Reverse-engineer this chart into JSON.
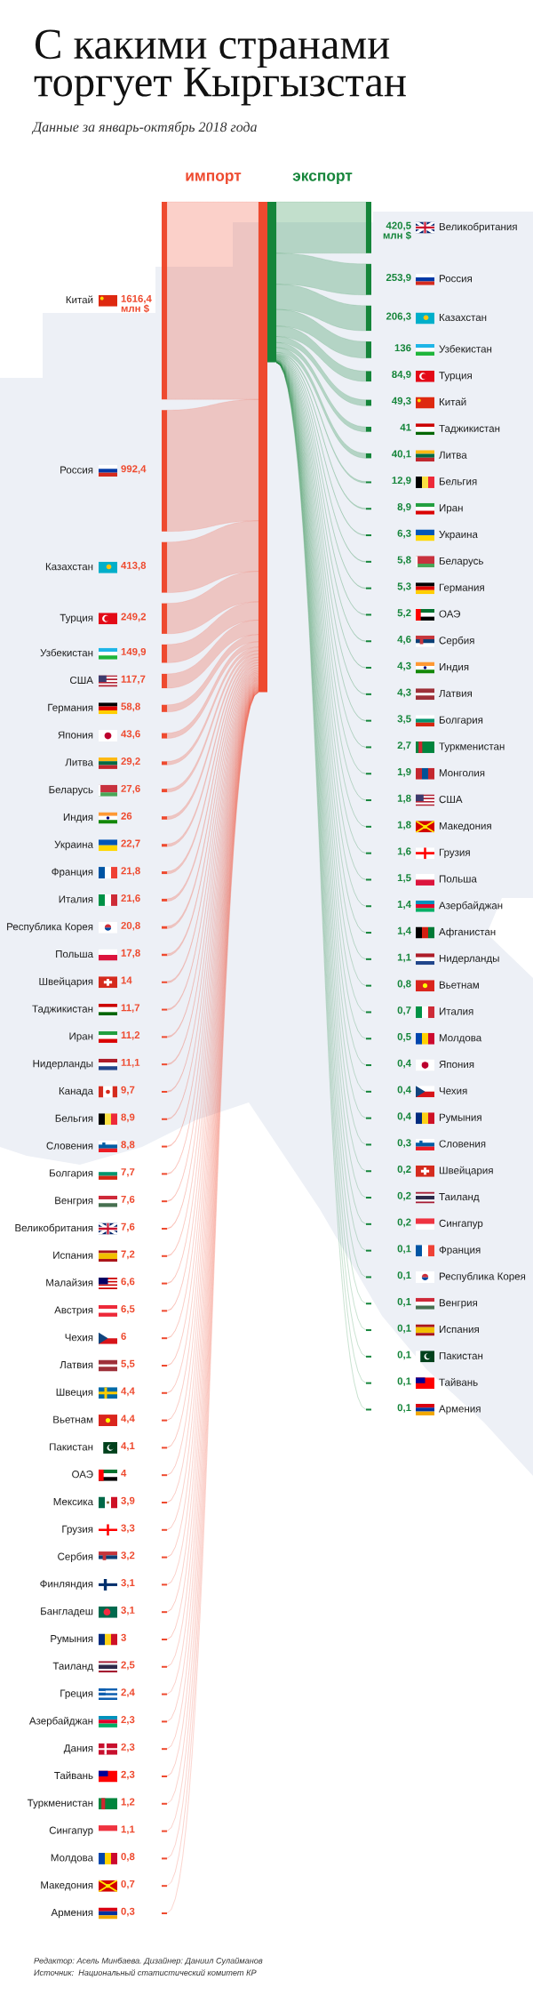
{
  "chart_data": [
    {
      "type": "other",
      "title": "С какими странами торгует Кыргызстан",
      "subtitle": "Данные за январь-октябрь 2018 года",
      "categories": [
        "Китай",
        "Россия",
        "Казахстан",
        "Турция",
        "Узбекистан",
        "США",
        "Германия",
        "Япония",
        "Литва",
        "Беларусь",
        "Индия",
        "Украина",
        "Франция",
        "Италия",
        "Республика Корея",
        "Польша",
        "Швейцария",
        "Таджикистан",
        "Иран",
        "Нидерланды",
        "Канада",
        "Бельгия",
        "Словения",
        "Болгария",
        "Венгрия",
        "Великобритания",
        "Испания",
        "Малайзия",
        "Австрия",
        "Чехия",
        "Латвия",
        "Швеция",
        "Вьетнам",
        "Пакистан",
        "ОАЭ",
        "Мексика",
        "Грузия",
        "Сербия",
        "Финляндия",
        "Бангладеш",
        "Румыния",
        "Таиланд",
        "Греция",
        "Азербайджан",
        "Дания",
        "Тайвань",
        "Туркменистан",
        "Сингапур",
        "Молдова",
        "Македония",
        "Армения"
      ],
      "series": [
        {
          "name": "импорт",
          "color": "#ee4a2f",
          "values": [
            1616.4,
            992.4,
            413.8,
            249.2,
            149.9,
            117.7,
            58.8,
            43.6,
            29.2,
            27.6,
            26,
            22.7,
            21.8,
            21.6,
            20.8,
            17.8,
            14,
            11.7,
            11.2,
            11.1,
            9.7,
            8.9,
            8.8,
            7.7,
            7.6,
            7.6,
            7.2,
            6.6,
            6.5,
            6,
            5.5,
            4.4,
            4.4,
            4.1,
            4,
            3.9,
            3.3,
            3.2,
            3.1,
            3.1,
            3,
            2.5,
            2.4,
            2.3,
            2.3,
            2.3,
            1.2,
            1.1,
            0.8,
            0.7,
            0.3
          ],
          "value_labels": [
            "1616,4 млн $",
            "992,4",
            "413,8",
            "249,2",
            "149,9",
            "117,7",
            "58,8",
            "43,6",
            "29,2",
            "27,6",
            "26",
            "22,7",
            "21,8",
            "21,6",
            "20,8",
            "17,8",
            "14",
            "11,7",
            "11,2",
            "11,1",
            "9,7",
            "8,9",
            "8,8",
            "7,7",
            "7,6",
            "7,6",
            "7,2",
            "6,6",
            "6,5",
            "6",
            "5,5",
            "4,4",
            "4,4",
            "4,1",
            "4",
            "3,9",
            "3,3",
            "3,2",
            "3,1",
            "3,1",
            "3",
            "2,5",
            "2,4",
            "2,3",
            "2,3",
            "2,3",
            "1,2",
            "1,1",
            "0,8",
            "0,7",
            "0,3"
          ]
        }
      ],
      "annotations": [
        "Редактор: Асель Минбаева. Дизайнер: Даниил Сулайманов",
        "Источник:  Национальный статистический комитет КР"
      ]
    },
    {
      "type": "other",
      "categories": [
        "Великобритания",
        "Россия",
        "Казахстан",
        "Узбекистан",
        "Турция",
        "Китай",
        "Таджикистан",
        "Литва",
        "Бельгия",
        "Иран",
        "Украина",
        "Беларусь",
        "Германия",
        "ОАЭ",
        "Сербия",
        "Индия",
        "Латвия",
        "Болгария",
        "Туркменистан",
        "Монголия",
        "США",
        "Македония",
        "Грузия",
        "Польша",
        "Азербайджан",
        "Афганистан",
        "Нидерланды",
        "Вьетнам",
        "Италия",
        "Молдова",
        "Япония",
        "Чехия",
        "Румыния",
        "Словения",
        "Швейцария",
        "Таиланд",
        "Сингапур",
        "Франция",
        "Республика Корея",
        "Венгрия",
        "Испания",
        "Пакистан",
        "Тайвань",
        "Армения"
      ],
      "series": [
        {
          "name": "экспорт",
          "color": "#15853a",
          "values": [
            420.5,
            253.9,
            206.3,
            136,
            84.9,
            49.3,
            41,
            40.1,
            12.9,
            8.9,
            6.3,
            5.8,
            5.3,
            5.2,
            4.6,
            4.3,
            4.3,
            3.5,
            2.7,
            1.9,
            1.8,
            1.8,
            1.6,
            1.5,
            1.4,
            1.4,
            1.1,
            0.8,
            0.7,
            0.5,
            0.4,
            0.4,
            0.4,
            0.3,
            0.2,
            0.2,
            0.2,
            0.1,
            0.1,
            0.1,
            0.1,
            0.1,
            0.1,
            0.1
          ],
          "value_labels": [
            "420,5 млн $",
            "253,9",
            "206,3",
            "136",
            "84,9",
            "49,3",
            "41",
            "40,1",
            "12,9",
            "8,9",
            "6,3",
            "5,8",
            "5,3",
            "5,2",
            "4,6",
            "4,3",
            "4,3",
            "3,5",
            "2,7",
            "1,9",
            "1,8",
            "1,8",
            "1,6",
            "1,5",
            "1,4",
            "1,4",
            "1,1",
            "0,8",
            "0,7",
            "0,5",
            "0,4",
            "0,4",
            "0,4",
            "0,3",
            "0,2",
            "0,2",
            "0,2",
            "0,1",
            "0,1",
            "0,1",
            "0,1",
            "0,1",
            "0,1",
            "0,1"
          ]
        }
      ]
    }
  ]
}
